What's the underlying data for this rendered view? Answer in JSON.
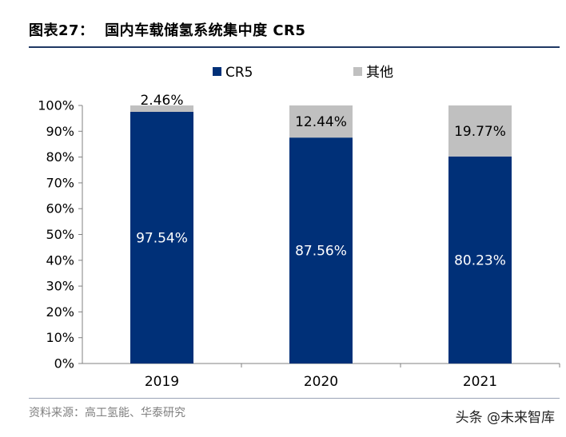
{
  "page_title": "图表27：  国内车载储氢系统集中度 CR5",
  "source": "资料来源：高工氢能、华泰研究",
  "watermark": "头条 @未来智库",
  "colors": {
    "cr5": "#003078",
    "other": "#c0c0c0",
    "title_rule": "#1f3864"
  },
  "chart_data": {
    "type": "bar",
    "stacked": true,
    "categories": [
      "2019",
      "2020",
      "2021"
    ],
    "series": [
      {
        "name": "CR5",
        "values": [
          97.54,
          87.56,
          80.23
        ],
        "labels": [
          "97.54%",
          "87.56%",
          "80.23%"
        ]
      },
      {
        "name": "其他",
        "values": [
          2.46,
          12.44,
          19.77
        ],
        "labels": [
          "2.46%",
          "12.44%",
          "19.77%"
        ]
      }
    ],
    "ylim": [
      0,
      100
    ],
    "yticks": [
      "0%",
      "10%",
      "20%",
      "30%",
      "40%",
      "50%",
      "60%",
      "70%",
      "80%",
      "90%",
      "100%"
    ],
    "legend_position": "top",
    "grid": false
  }
}
